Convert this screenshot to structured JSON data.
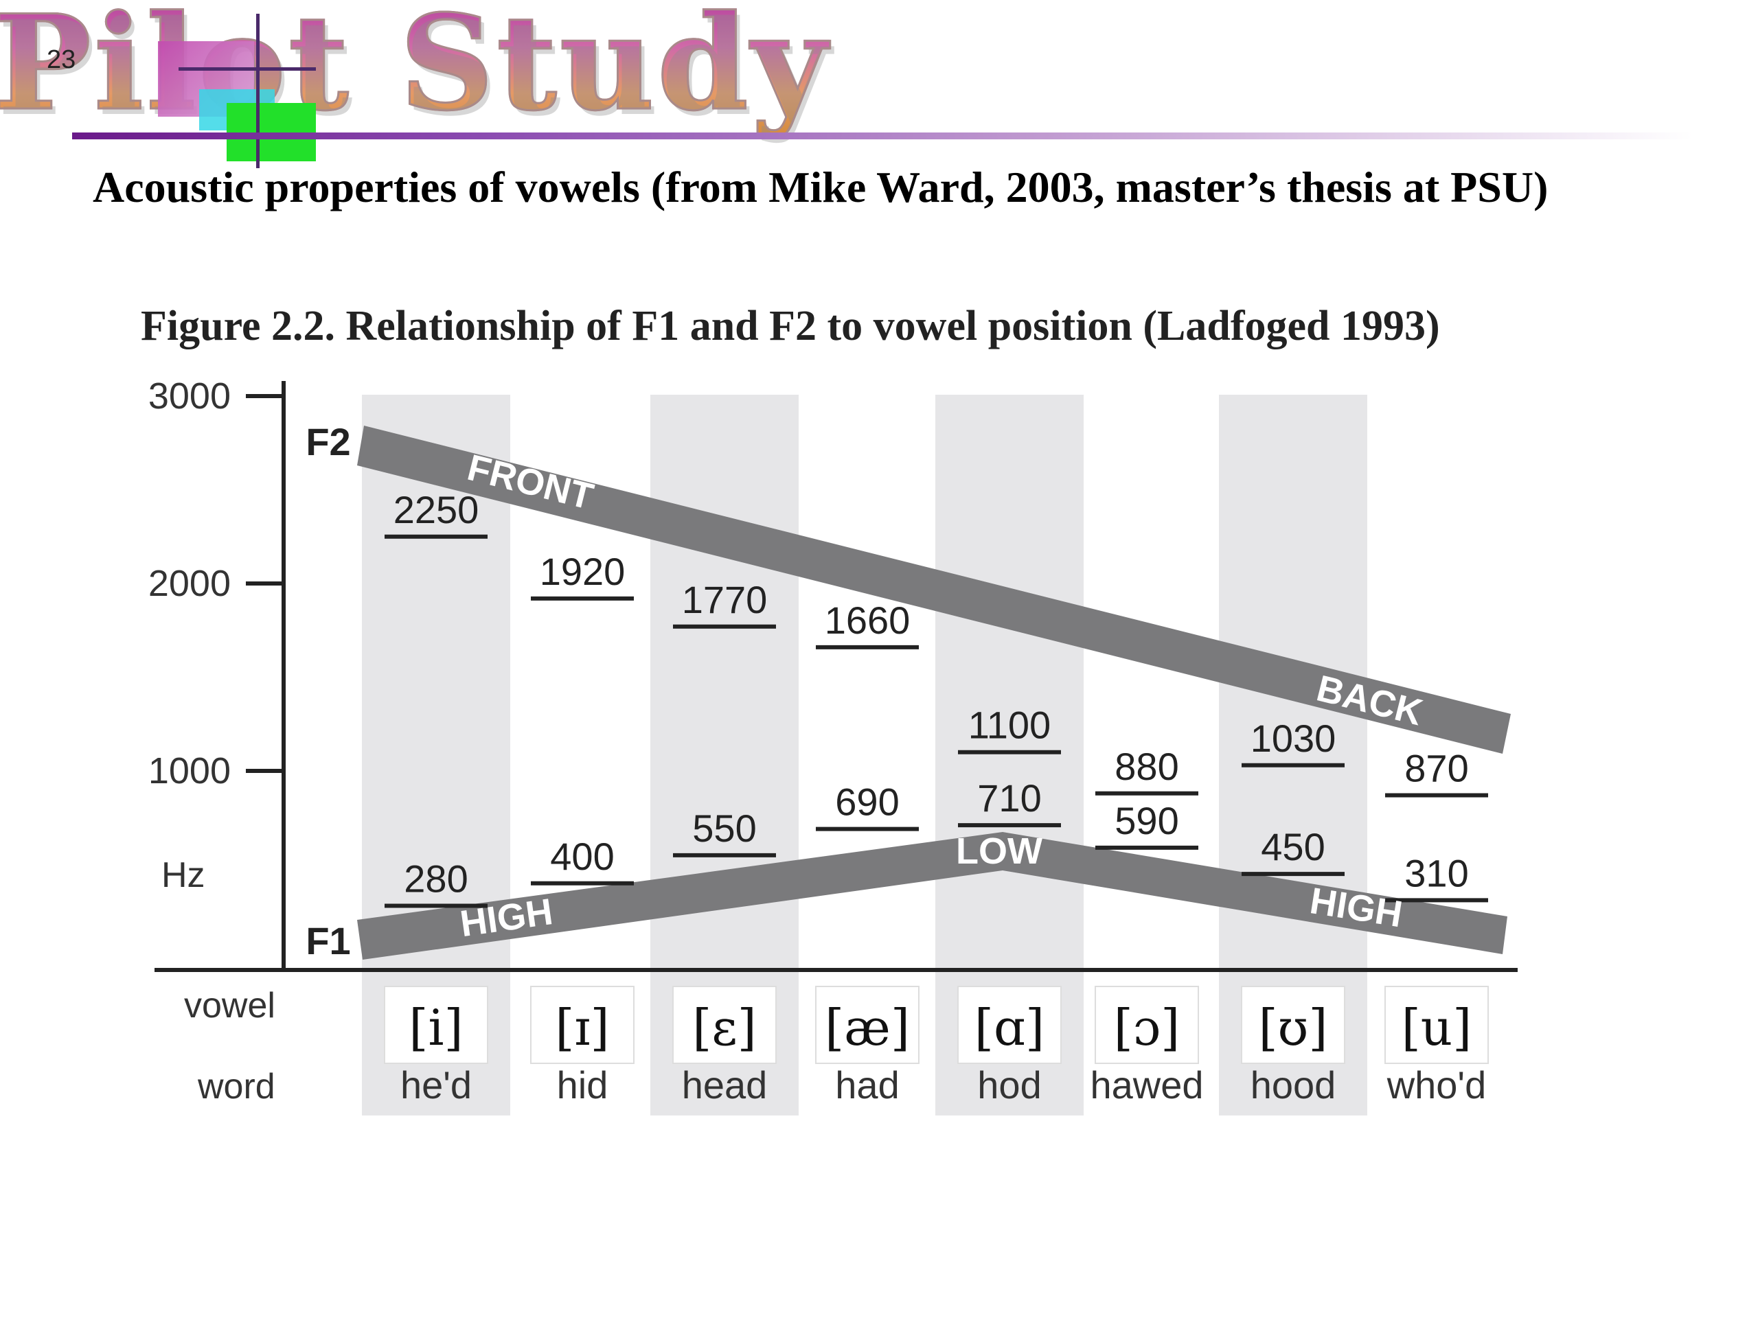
{
  "slide": {
    "number": "23",
    "header_title": "Pilot Study",
    "subtitle": "Acoustic properties of vowels (from Mike Ward, 2003, master’s thesis at PSU)",
    "colors": {
      "header_rule": "#6a1a8a",
      "band": "#7a7a7c",
      "column_shade": "#e6e6e8"
    }
  },
  "chart_data": {
    "type": "line",
    "title": "Figure 2.2. Relationship of F1 and F2 to vowel position (Ladfoged 1993)",
    "ylabel": "Hz",
    "ylim": [
      0,
      3000
    ],
    "yticks": [
      "3000",
      "2000",
      "1000"
    ],
    "ytick_values": [
      3000,
      2000,
      1000
    ],
    "row_labels": {
      "vowel": "vowel",
      "word": "word"
    },
    "categories": [
      "he'd",
      "hid",
      "head",
      "had",
      "hod",
      "hawed",
      "hood",
      "who'd"
    ],
    "vowels": [
      "[i]",
      "[ɪ]",
      "[ɛ]",
      "[æ]",
      "[ɑ]",
      "[ɔ]",
      "[ʊ]",
      "[u]"
    ],
    "series": [
      {
        "name": "F2",
        "values": [
          2250,
          1920,
          1770,
          1660,
          1100,
          880,
          1030,
          870
        ]
      },
      {
        "name": "F1",
        "values": [
          280,
          400,
          550,
          690,
          710,
          590,
          450,
          310
        ]
      }
    ],
    "band_labels": {
      "f2_left": "FRONT",
      "f2_right": "BACK",
      "f1_left": "HIGH",
      "f1_mid": "LOW",
      "f1_right": "HIGH"
    }
  }
}
